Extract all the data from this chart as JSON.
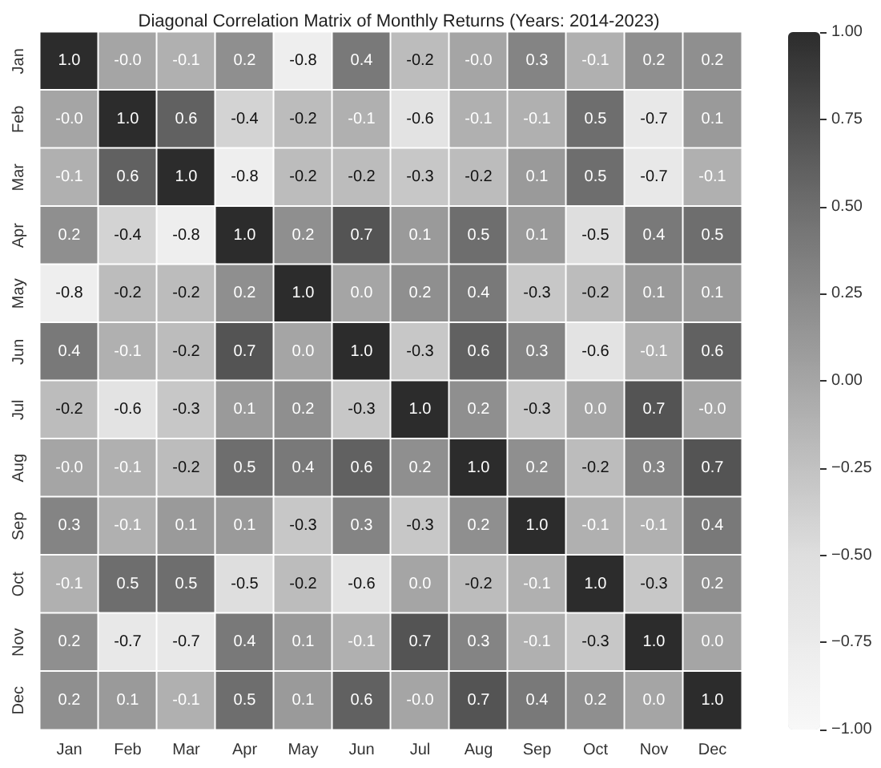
{
  "chart_data": {
    "type": "heatmap",
    "title": "Diagonal Correlation Matrix of Monthly Returns (Years: 2014-2023)",
    "categories": [
      "Jan",
      "Feb",
      "Mar",
      "Apr",
      "May",
      "Jun",
      "Jul",
      "Aug",
      "Sep",
      "Oct",
      "Nov",
      "Dec"
    ],
    "y_categories": [
      "Jan",
      "Feb",
      "Mar",
      "Apr",
      "May",
      "Jun",
      "Jul",
      "Aug",
      "Sep",
      "Oct",
      "Nov",
      "Dec"
    ],
    "cells": [
      [
        1.0,
        -0.0,
        -0.1,
        0.2,
        -0.8,
        0.4,
        -0.2,
        -0.0,
        0.3,
        -0.1,
        0.2,
        0.2
      ],
      [
        -0.0,
        1.0,
        0.6,
        -0.4,
        -0.2,
        -0.1,
        -0.6,
        -0.1,
        -0.1,
        0.5,
        -0.7,
        0.1
      ],
      [
        -0.1,
        0.6,
        1.0,
        -0.8,
        -0.2,
        -0.2,
        -0.3,
        -0.2,
        0.1,
        0.5,
        -0.7,
        -0.1
      ],
      [
        0.2,
        -0.4,
        -0.8,
        1.0,
        0.2,
        0.7,
        0.1,
        0.5,
        0.1,
        -0.5,
        0.4,
        0.5
      ],
      [
        -0.8,
        -0.2,
        -0.2,
        0.2,
        1.0,
        0.0,
        0.2,
        0.4,
        -0.3,
        -0.2,
        0.1,
        0.1
      ],
      [
        0.4,
        -0.1,
        -0.2,
        0.7,
        0.0,
        1.0,
        -0.3,
        0.6,
        0.3,
        -0.6,
        -0.1,
        0.6
      ],
      [
        -0.2,
        -0.6,
        -0.3,
        0.1,
        0.2,
        -0.3,
        1.0,
        0.2,
        -0.3,
        0.0,
        0.7,
        -0.0
      ],
      [
        -0.0,
        -0.1,
        -0.2,
        0.5,
        0.4,
        0.6,
        0.2,
        1.0,
        0.2,
        -0.2,
        0.3,
        0.7
      ],
      [
        0.3,
        -0.1,
        0.1,
        0.1,
        -0.3,
        0.3,
        -0.3,
        0.2,
        1.0,
        -0.1,
        -0.1,
        0.4
      ],
      [
        -0.1,
        0.5,
        0.5,
        -0.5,
        -0.2,
        -0.6,
        0.0,
        -0.2,
        -0.1,
        1.0,
        -0.3,
        0.2
      ],
      [
        0.2,
        -0.7,
        -0.7,
        0.4,
        0.1,
        -0.1,
        0.7,
        0.3,
        -0.1,
        -0.3,
        1.0,
        0.0
      ],
      [
        0.2,
        0.1,
        -0.1,
        0.5,
        0.1,
        0.6,
        -0.0,
        0.7,
        0.4,
        0.2,
        0.0,
        1.0
      ]
    ],
    "cell_labels": [
      [
        "1.0",
        "-0.0",
        "-0.1",
        "0.2",
        "-0.8",
        "0.4",
        "-0.2",
        "-0.0",
        "0.3",
        "-0.1",
        "0.2",
        "0.2"
      ],
      [
        "-0.0",
        "1.0",
        "0.6",
        "-0.4",
        "-0.2",
        "-0.1",
        "-0.6",
        "-0.1",
        "-0.1",
        "0.5",
        "-0.7",
        "0.1"
      ],
      [
        "-0.1",
        "0.6",
        "1.0",
        "-0.8",
        "-0.2",
        "-0.2",
        "-0.3",
        "-0.2",
        "0.1",
        "0.5",
        "-0.7",
        "-0.1"
      ],
      [
        "0.2",
        "-0.4",
        "-0.8",
        "1.0",
        "0.2",
        "0.7",
        "0.1",
        "0.5",
        "0.1",
        "-0.5",
        "0.4",
        "0.5"
      ],
      [
        "-0.8",
        "-0.2",
        "-0.2",
        "0.2",
        "1.0",
        "0.0",
        "0.2",
        "0.4",
        "-0.3",
        "-0.2",
        "0.1",
        "0.1"
      ],
      [
        "0.4",
        "-0.1",
        "-0.2",
        "0.7",
        "0.0",
        "1.0",
        "-0.3",
        "0.6",
        "0.3",
        "-0.6",
        "-0.1",
        "0.6"
      ],
      [
        "-0.2",
        "-0.6",
        "-0.3",
        "0.1",
        "0.2",
        "-0.3",
        "1.0",
        "0.2",
        "-0.3",
        "0.0",
        "0.7",
        "-0.0"
      ],
      [
        "-0.0",
        "-0.1",
        "-0.2",
        "0.5",
        "0.4",
        "0.6",
        "0.2",
        "1.0",
        "0.2",
        "-0.2",
        "0.3",
        "0.7"
      ],
      [
        "0.3",
        "-0.1",
        "0.1",
        "0.1",
        "-0.3",
        "0.3",
        "-0.3",
        "0.2",
        "1.0",
        "-0.1",
        "-0.1",
        "0.4"
      ],
      [
        "-0.1",
        "0.5",
        "0.5",
        "-0.5",
        "-0.2",
        "-0.6",
        "0.0",
        "-0.2",
        "-0.1",
        "1.0",
        "-0.3",
        "0.2"
      ],
      [
        "0.2",
        "-0.7",
        "-0.7",
        "0.4",
        "0.1",
        "-0.1",
        "0.7",
        "0.3",
        "-0.1",
        "-0.3",
        "1.0",
        "0.0"
      ],
      [
        "0.2",
        "0.1",
        "-0.1",
        "0.5",
        "0.1",
        "0.6",
        "-0.0",
        "0.7",
        "0.4",
        "0.2",
        "0.0",
        "1.0"
      ]
    ],
    "clim": [
      -1,
      1
    ],
    "cticks": [
      {
        "value": 1,
        "label": "1.00"
      },
      {
        "value": 0.75,
        "label": "0.75"
      },
      {
        "value": 0.5,
        "label": "0.50"
      },
      {
        "value": 0.25,
        "label": "0.25"
      },
      {
        "value": 0,
        "label": "0.00"
      },
      {
        "value": -0.25,
        "label": "−0.25"
      },
      {
        "value": -0.5,
        "label": "−0.50"
      },
      {
        "value": -0.75,
        "label": "−0.75"
      },
      {
        "value": -1,
        "label": "−1.00"
      }
    ]
  }
}
